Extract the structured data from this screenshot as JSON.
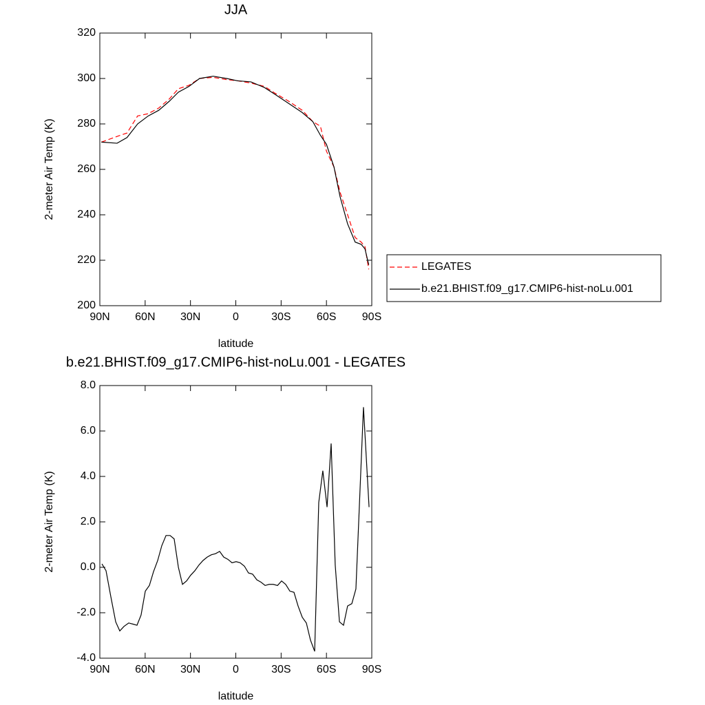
{
  "chart_data": [
    {
      "type": "line",
      "title": "JJA",
      "xlabel": "latitude",
      "ylabel": "2-meter Air Temp (K)",
      "xlim": [
        90,
        -90
      ],
      "xticks": [
        {
          "value": 90,
          "label": "90N"
        },
        {
          "value": 60,
          "label": "60N"
        },
        {
          "value": 30,
          "label": "30N"
        },
        0,
        {
          "value": -30,
          "label": "30S"
        },
        {
          "value": -60,
          "label": "60S"
        },
        {
          "value": -90,
          "label": "90S"
        }
      ],
      "ylim": [
        200,
        320
      ],
      "yticks": [
        200,
        220,
        240,
        260,
        280,
        300,
        320
      ],
      "legend": "right",
      "x": [
        89,
        78.6,
        72,
        65,
        58,
        51,
        44,
        38,
        31,
        24,
        15,
        6,
        -1,
        -10,
        -19,
        -26,
        -35,
        -44,
        -51,
        -56,
        -60,
        -65,
        -69,
        -74,
        -79,
        -83,
        -85.5,
        -88
      ],
      "series": [
        {
          "name": "LEGATES",
          "color": "#ff0000",
          "linestyle": "dashed",
          "values": [
            272,
            274.5,
            276,
            283.5,
            284.5,
            287,
            291,
            295.5,
            297,
            300,
            300.5,
            299.5,
            299,
            298,
            296.5,
            293.5,
            290,
            286,
            281,
            279,
            268,
            261,
            250,
            240,
            230,
            228,
            226,
            216
          ]
        },
        {
          "name": "b.e21.BHIST.f09_g17.CMIP6-hist-noLu.001",
          "color": "#000000",
          "linestyle": "solid",
          "values": [
            272,
            271.5,
            274,
            280,
            283.5,
            286,
            290,
            294,
            296.5,
            300,
            301,
            300,
            299,
            298.5,
            296,
            293,
            289,
            285,
            281,
            275,
            271,
            261,
            248,
            236,
            228,
            227,
            225,
            218
          ]
        }
      ]
    },
    {
      "type": "line",
      "title": "b.e21.BHIST.f09_g17.CMIP6-hist-noLu.001 - LEGATES",
      "xlabel": "latitude",
      "ylabel": "2-meter Air Temp (K)",
      "xlim": [
        90,
        -90
      ],
      "xticks": [
        {
          "value": 90,
          "label": "90N"
        },
        {
          "value": 60,
          "label": "60N"
        },
        {
          "value": 30,
          "label": "30N"
        },
        0,
        {
          "value": -30,
          "label": "30S"
        },
        {
          "value": -60,
          "label": "60S"
        },
        {
          "value": -90,
          "label": "90S"
        }
      ],
      "ylim": [
        -4,
        8
      ],
      "yticks": [
        {
          "value": -4,
          "label": "-4.0"
        },
        {
          "value": -2,
          "label": "-2.0"
        },
        {
          "value": 0,
          "label": "0.0"
        },
        {
          "value": 2,
          "label": "2.0"
        },
        {
          "value": 4,
          "label": "4.0"
        },
        {
          "value": 6,
          "label": "6.0"
        },
        {
          "value": 8,
          "label": "8.0"
        }
      ],
      "x": [
        88.6,
        85.9,
        82.7,
        79.5,
        76.8,
        74,
        70.9,
        68.1,
        65.4,
        62.7,
        59.9,
        57.2,
        54.5,
        51.7,
        49,
        46.2,
        43.5,
        40.8,
        38,
        35.3,
        32.6,
        29.9,
        27.1,
        24.4,
        21.7,
        18.9,
        16.2,
        13.4,
        10.7,
        8,
        5.2,
        2.5,
        -0.2,
        -2.9,
        -5.7,
        -8.4,
        -11.1,
        -13.9,
        -16.6,
        -19.4,
        -22.1,
        -24.8,
        -27.6,
        -30.3,
        -33,
        -35.8,
        -38.5,
        -41.2,
        -44,
        -46.7,
        -49.4,
        -52.2,
        -54.9,
        -57.6,
        -60.4,
        -63.1,
        -65.8,
        -68.6,
        -71.3,
        -74,
        -76.8,
        -79.5,
        -84.5,
        -88.2
      ],
      "series": [
        {
          "name": "b.e21.BHIST.f09_g17.CMIP6-hist-noLu.001 - LEGATES",
          "color": "#000000",
          "linestyle": "solid",
          "values": [
            0.15,
            -0.15,
            -1.3,
            -2.4,
            -2.8,
            -2.6,
            -2.45,
            -2.5,
            -2.55,
            -2.1,
            -1.05,
            -0.8,
            -0.2,
            0.3,
            0.95,
            1.4,
            1.4,
            1.25,
            0,
            -0.75,
            -0.6,
            -0.35,
            -0.15,
            0.1,
            0.3,
            0.45,
            0.55,
            0.6,
            0.7,
            0.45,
            0.35,
            0.2,
            0.25,
            0.2,
            0.05,
            -0.25,
            -0.3,
            -0.55,
            -0.65,
            -0.8,
            -0.75,
            -0.75,
            -0.8,
            -0.6,
            -0.75,
            -1.05,
            -1.1,
            -1.7,
            -2.2,
            -2.45,
            -3.2,
            -3.7,
            2.85,
            4.25,
            2.65,
            5.45,
            0.1,
            -2.4,
            -2.55,
            -1.7,
            -1.6,
            -0.95,
            7.05,
            2.65
          ]
        }
      ]
    }
  ]
}
